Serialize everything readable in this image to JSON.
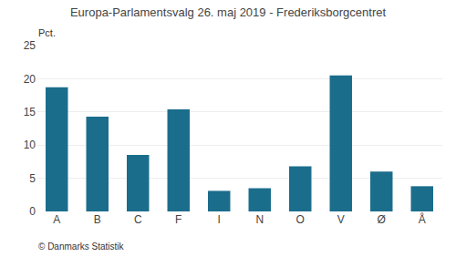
{
  "chart_data": {
    "type": "bar",
    "title": "Europa-Parlamentsvalg 26. maj 2019 - Frederiksborgcentret",
    "ylabel": "Pct.",
    "annotations": [
      "© Danmarks Statistik"
    ],
    "categories": [
      "A",
      "B",
      "C",
      "F",
      "I",
      "N",
      "O",
      "V",
      "Ø",
      "Å"
    ],
    "values": [
      18.7,
      14.3,
      8.5,
      15.4,
      3.1,
      3.5,
      6.8,
      20.5,
      6.0,
      3.8
    ],
    "color": "#1b6d8c",
    "ylim": [
      0,
      25
    ],
    "yticks": [
      0,
      5,
      10,
      15,
      20,
      25
    ],
    "grid": true
  }
}
